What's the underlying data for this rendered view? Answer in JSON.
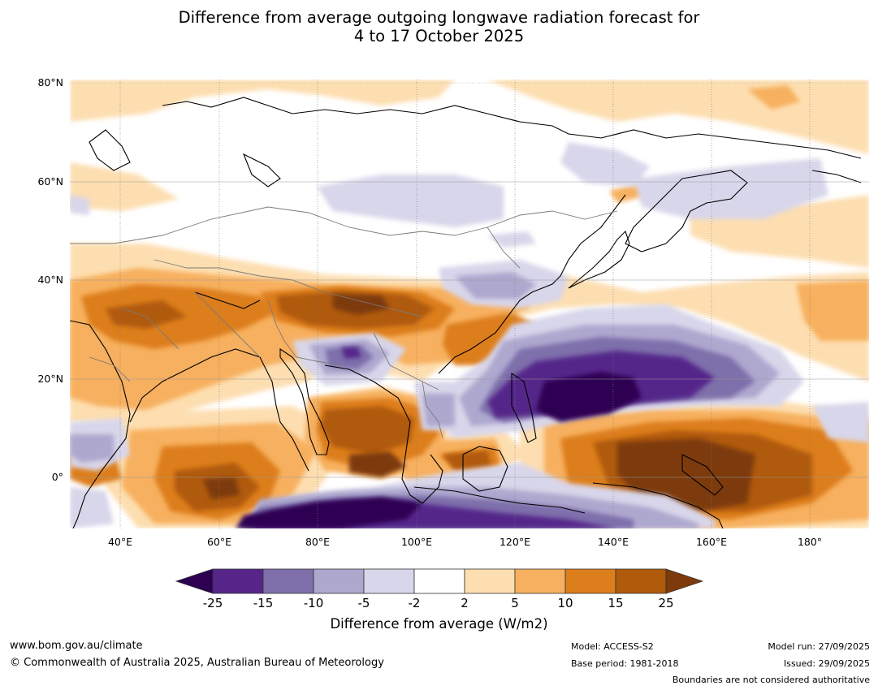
{
  "title": {
    "line1": "Difference from average outgoing longwave radiation forecast for",
    "line2": "4 to 17 October 2025"
  },
  "map": {
    "lat_labels": [
      "80°N",
      "60°N",
      "40°N",
      "20°N",
      "0°"
    ],
    "lon_labels": [
      "40°E",
      "60°E",
      "80°E",
      "100°E",
      "120°E",
      "140°E",
      "160°E",
      "180°"
    ],
    "lat_values": [
      80,
      60,
      40,
      20,
      0
    ],
    "lon_values": [
      40,
      60,
      80,
      100,
      120,
      140,
      160,
      180
    ],
    "extent": {
      "lon_min": 30,
      "lon_max": 190,
      "lat_min": -10,
      "lat_max": 81
    }
  },
  "colorbar": {
    "title": "Difference from average (W/m2)",
    "ticks": [
      "-25",
      "-15",
      "-10",
      "-5",
      "-2",
      "2",
      "5",
      "10",
      "15",
      "25"
    ],
    "colors": [
      "#2d0052",
      "#55258a",
      "#7e6fab",
      "#aea8cf",
      "#d8d6ea",
      "#ffffff",
      "#fddeb0",
      "#f7b05f",
      "#dd7e1c",
      "#b05a0c",
      "#7d3a0a"
    ]
  },
  "footer": {
    "website": "www.bom.gov.au/climate",
    "copyright": "© Commonwealth of Australia 2025, Australian Bureau of Meteorology",
    "model": "Model: ACCESS-S2",
    "base_period": "Base period: 1981-2018",
    "model_run": "Model run: 27/09/2025",
    "issued": "Issued: 29/09/2025",
    "disclaimer": "Boundaries are not considered authoritative"
  }
}
